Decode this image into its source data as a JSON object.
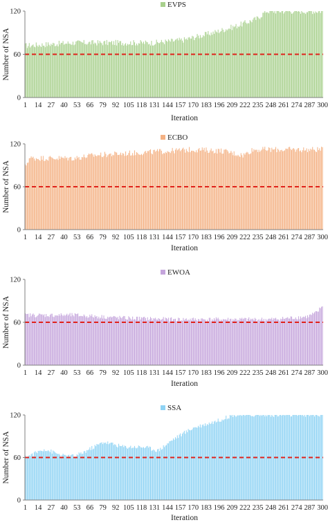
{
  "threshold": 60,
  "charts": [
    {
      "type": "bar",
      "legend": "EVPS",
      "color": "#a8d08d",
      "xlabel": "Iteration",
      "ylabel": "Number of NSA",
      "ylim": [
        0,
        120
      ],
      "yticks": [
        0,
        60,
        120
      ],
      "xticks": [
        1,
        14,
        27,
        40,
        53,
        66,
        79,
        92,
        105,
        118,
        131,
        144,
        157,
        170,
        183,
        196,
        209,
        222,
        235,
        248,
        261,
        274,
        287,
        300
      ],
      "n": 300,
      "trend": [
        [
          1,
          72
        ],
        [
          50,
          76
        ],
        [
          130,
          76
        ],
        [
          160,
          80
        ],
        [
          190,
          90
        ],
        [
          215,
          100
        ],
        [
          235,
          110
        ],
        [
          243,
          120
        ],
        [
          300,
          120
        ]
      ],
      "noise": 4
    },
    {
      "type": "bar",
      "legend": "ECBO",
      "color": "#f4b183",
      "xlabel": "Iteration",
      "ylabel": "Number of NSA",
      "ylim": [
        0,
        120
      ],
      "yticks": [
        0,
        60,
        120
      ],
      "xticks": [
        1,
        14,
        27,
        40,
        53,
        66,
        79,
        92,
        105,
        118,
        131,
        144,
        157,
        170,
        183,
        196,
        209,
        222,
        235,
        248,
        261,
        274,
        287,
        300
      ],
      "n": 300,
      "trend": [
        [
          1,
          88
        ],
        [
          5,
          100
        ],
        [
          50,
          100
        ],
        [
          70,
          104
        ],
        [
          120,
          108
        ],
        [
          170,
          112
        ],
        [
          200,
          110
        ],
        [
          220,
          104
        ],
        [
          230,
          112
        ],
        [
          300,
          112
        ]
      ],
      "noise": 4
    },
    {
      "type": "bar",
      "legend": "EWOA",
      "color": "#c5a5dc",
      "xlabel": "Iteration",
      "ylabel": "Number of NSA",
      "ylim": [
        0,
        120
      ],
      "yticks": [
        0,
        60,
        120
      ],
      "xticks": [
        1,
        14,
        27,
        40,
        53,
        66,
        79,
        92,
        105,
        118,
        131,
        144,
        157,
        170,
        183,
        196,
        209,
        222,
        235,
        248,
        261,
        274,
        287,
        300
      ],
      "n": 300,
      "trend": [
        [
          1,
          70
        ],
        [
          50,
          70
        ],
        [
          100,
          66
        ],
        [
          150,
          64
        ],
        [
          200,
          64
        ],
        [
          250,
          64
        ],
        [
          285,
          68
        ],
        [
          295,
          74
        ],
        [
          300,
          84
        ]
      ],
      "noise": 3
    },
    {
      "type": "bar",
      "legend": "SSA",
      "color": "#8fd3f4",
      "xlabel": "Iteration",
      "ylabel": "Number of NSA",
      "ylim": [
        0,
        120
      ],
      "yticks": [
        0,
        60,
        120
      ],
      "xticks": [
        1,
        14,
        27,
        40,
        53,
        66,
        79,
        92,
        105,
        118,
        131,
        144,
        157,
        170,
        183,
        196,
        209,
        222,
        235,
        248,
        261,
        274,
        287,
        300
      ],
      "n": 300,
      "trend": [
        [
          1,
          60
        ],
        [
          20,
          72
        ],
        [
          40,
          62
        ],
        [
          52,
          62
        ],
        [
          80,
          82
        ],
        [
          100,
          75
        ],
        [
          120,
          75
        ],
        [
          135,
          70
        ],
        [
          150,
          86
        ],
        [
          170,
          102
        ],
        [
          195,
          112
        ],
        [
          210,
          120
        ],
        [
          300,
          120
        ]
      ],
      "noise": 3
    }
  ]
}
